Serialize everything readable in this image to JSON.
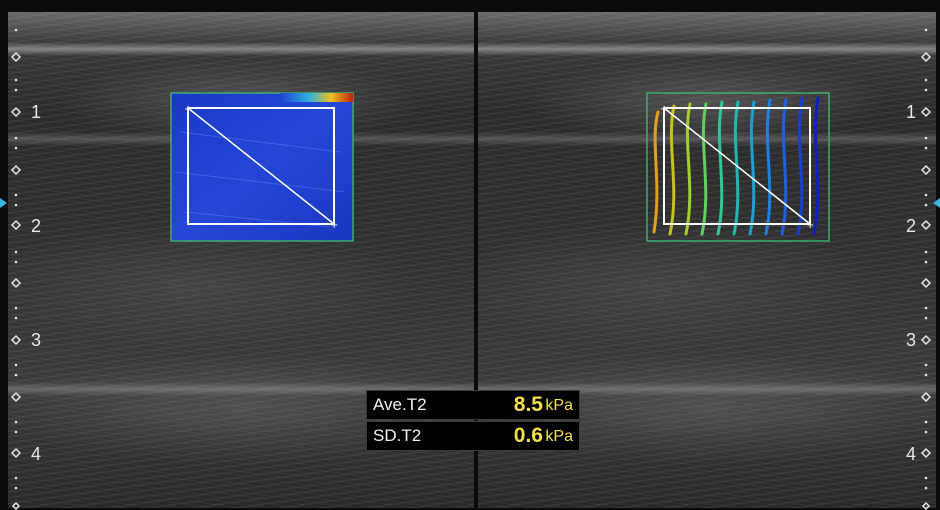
{
  "depth_scale": {
    "left_labels": [
      "1",
      "2",
      "3",
      "4"
    ],
    "right_labels": [
      "1",
      "2",
      "3",
      "4"
    ]
  },
  "measurements": [
    {
      "label": "Ave.T2",
      "value": "8.5",
      "unit": "kPa"
    },
    {
      "label": "SD.T2",
      "value": "0.6",
      "unit": "kPa"
    }
  ],
  "colors": {
    "elastogram_fill": "#1f3fd0",
    "roi_outline": "#ffffff",
    "readout_value": "#f4e04a",
    "readout_label": "#f1f1f1"
  }
}
